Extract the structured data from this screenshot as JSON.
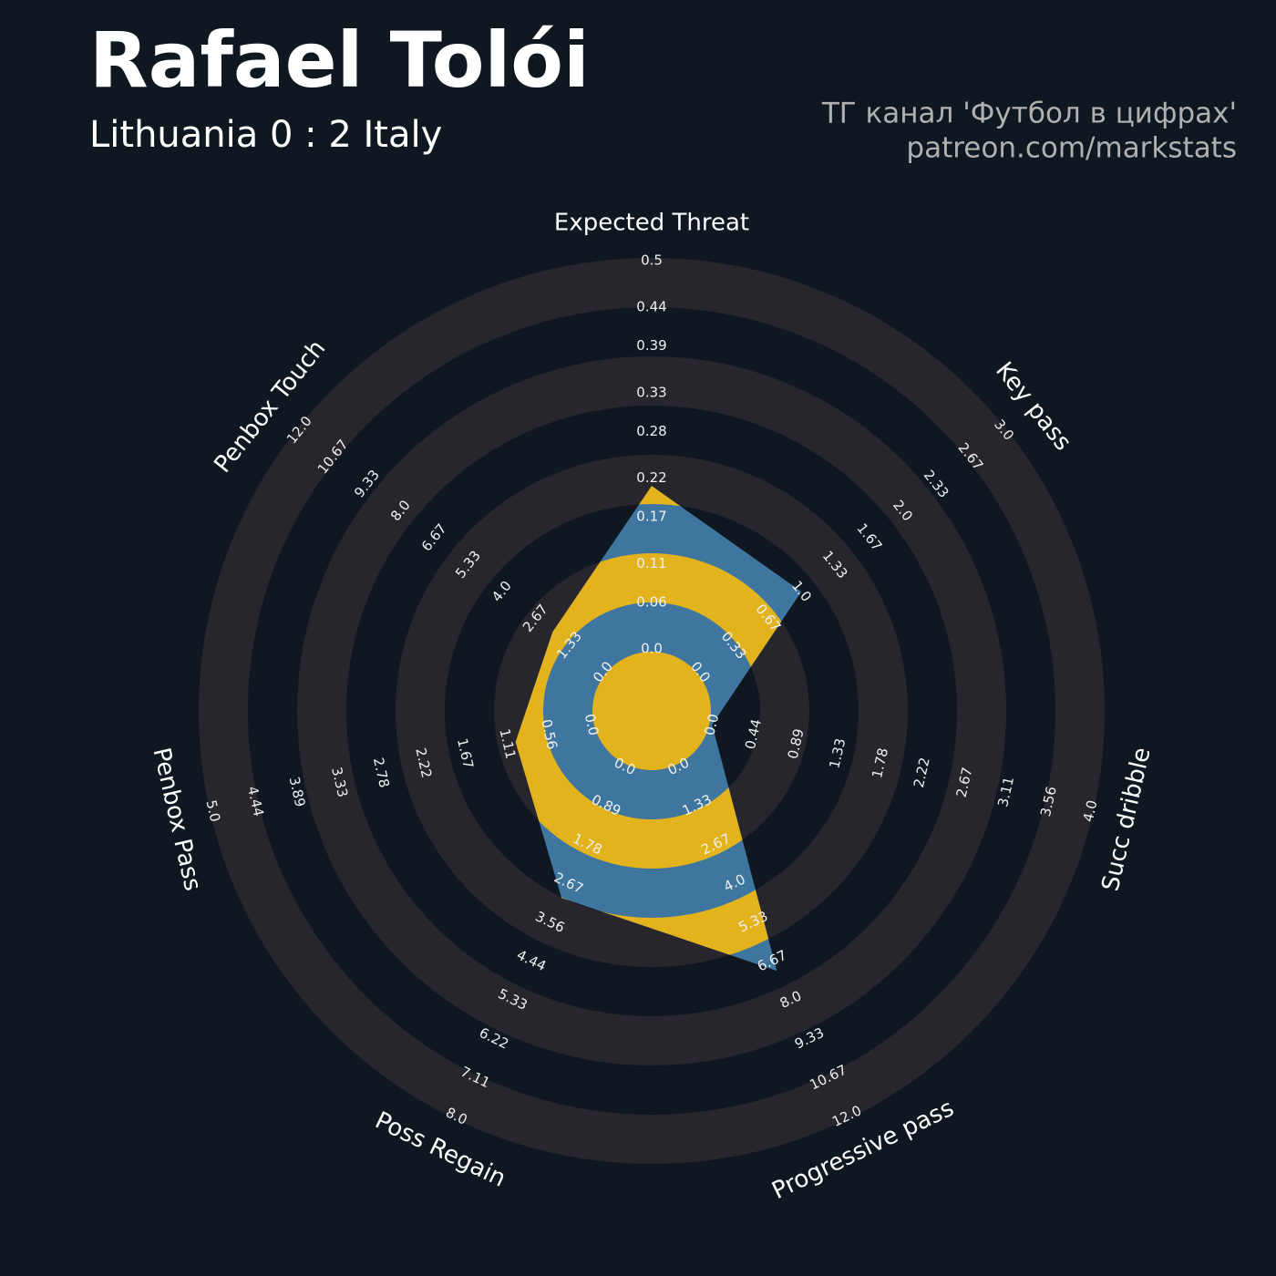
{
  "chart_data": {
    "type": "radar",
    "title": "Rafael Tolói",
    "subtitle": "Lithuania 0 : 2 Italy",
    "credits": [
      "ТГ канал 'Футбол в цифрах'",
      "patreon.com/markstats"
    ],
    "colors": {
      "background": "#0f1820",
      "ring": "#28252c",
      "fill": "#3f76a0",
      "fill_alt": "#e2b31d"
    },
    "axes": [
      {
        "label": "Expected Threat",
        "ylim": [
          0,
          0.5
        ],
        "yticks": [
          {
            "value": 0,
            "label": "0.0"
          },
          0.06,
          0.11,
          0.17,
          0.22,
          0.28,
          0.33,
          0.39,
          0.44,
          0.5
        ]
      },
      {
        "label": "Key pass",
        "ylim": [
          0,
          3
        ],
        "yticks": [
          {
            "value": 0,
            "label": "0.0"
          },
          0.33,
          0.67,
          {
            "value": 1,
            "label": "1.0"
          },
          1.33,
          1.67,
          {
            "value": 2,
            "label": "2.0"
          },
          2.33,
          2.67,
          {
            "value": 3,
            "label": "3.0"
          }
        ]
      },
      {
        "label": "Succ dribble",
        "ylim": [
          0,
          4
        ],
        "yticks": [
          {
            "value": 0,
            "label": "0.0"
          },
          0.44,
          0.89,
          1.33,
          1.78,
          2.22,
          2.67,
          3.11,
          3.56,
          {
            "value": 4,
            "label": "4.0"
          }
        ]
      },
      {
        "label": "Progressive pass",
        "ylim": [
          0,
          12
        ],
        "yticks": [
          {
            "value": 0,
            "label": "0.0"
          },
          1.33,
          2.67,
          {
            "value": 4,
            "label": "4.0"
          },
          5.33,
          6.67,
          {
            "value": 8,
            "label": "8.0"
          },
          9.33,
          10.67,
          {
            "value": 12,
            "label": "12.0"
          }
        ]
      },
      {
        "label": "Poss Regain",
        "ylim": [
          0,
          8
        ],
        "yticks": [
          {
            "value": 0,
            "label": "0.0"
          },
          0.89,
          1.78,
          2.67,
          3.56,
          4.44,
          5.33,
          6.22,
          7.11,
          {
            "value": 8,
            "label": "8.0"
          }
        ]
      },
      {
        "label": "Penbox Pass",
        "ylim": [
          0,
          5
        ],
        "yticks": [
          {
            "value": 0,
            "label": "0.0"
          },
          0.56,
          1.11,
          1.67,
          2.22,
          2.78,
          3.33,
          3.89,
          4.44,
          {
            "value": 5,
            "label": "5.0"
          }
        ]
      },
      {
        "label": "Penbox Touch",
        "ylim": [
          0,
          12
        ],
        "yticks": [
          {
            "value": 0,
            "label": "0.0"
          },
          1.33,
          2.67,
          {
            "value": 4,
            "label": "4.0"
          },
          5.33,
          6.67,
          {
            "value": 8,
            "label": "8.0"
          },
          9.33,
          10.67,
          {
            "value": 12,
            "label": "12.0"
          }
        ]
      }
    ],
    "values": [
      0.21,
      1,
      0,
      7,
      3,
      1,
      2
    ]
  }
}
